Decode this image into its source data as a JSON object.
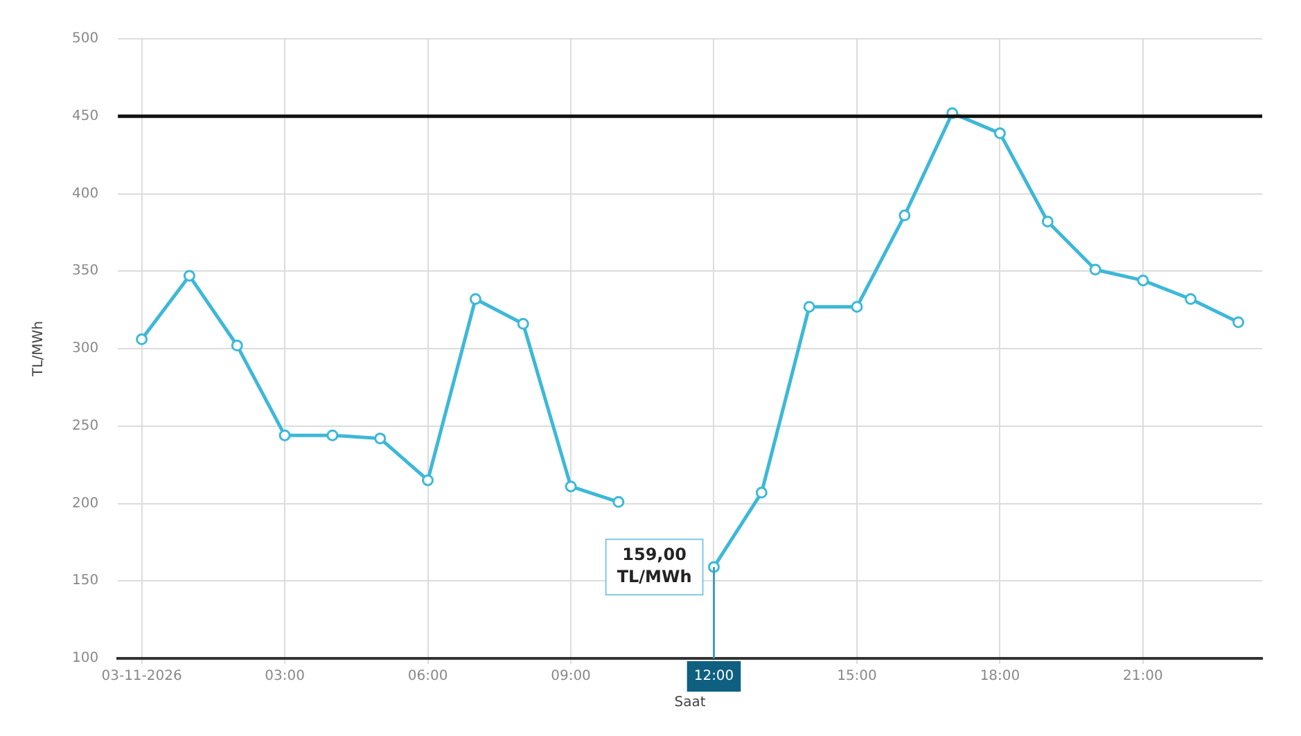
{
  "chart_data": {
    "type": "line",
    "xlabel": "Saat",
    "ylabel": "TL/MWh",
    "x": [
      0,
      1,
      2,
      3,
      4,
      5,
      6,
      7,
      8,
      9,
      10,
      11,
      12,
      13,
      14,
      15,
      16,
      17,
      18,
      19,
      20,
      21,
      22,
      23
    ],
    "series": [
      {
        "color": "#3db8d8",
        "values": [
          306,
          347,
          302,
          244,
          244,
          242,
          215,
          332,
          316,
          211,
          201,
          null,
          159,
          207,
          327,
          327,
          386,
          452,
          439,
          382,
          351,
          344,
          332,
          317
        ]
      }
    ],
    "xlim": [
      -0.5,
      23.5
    ],
    "xticks": [
      {
        "value": 0,
        "label": "03-11-2026"
      },
      {
        "value": 3,
        "label": "03:00"
      },
      {
        "value": 6,
        "label": "06:00"
      },
      {
        "value": 9,
        "label": "09:00"
      },
      {
        "value": 12,
        "label": "12:00"
      },
      {
        "value": 15,
        "label": "15:00"
      },
      {
        "value": 18,
        "label": "18:00"
      },
      {
        "value": 21,
        "label": "21:00"
      }
    ],
    "ylim": [
      100,
      500
    ],
    "yticks": [
      100,
      150,
      200,
      250,
      300,
      350,
      400,
      450,
      500
    ],
    "ref_lines": [
      {
        "axis": "y",
        "value": 450,
        "color": "#111111"
      },
      {
        "axis": "x",
        "value": 12,
        "color": "#3a9fbf"
      }
    ],
    "annotations": [
      {
        "text": "159,00\nTL/MWh",
        "x": 12,
        "y": 159
      }
    ],
    "grid": true,
    "legend": false,
    "marker": "circle",
    "line_style": "solid"
  }
}
